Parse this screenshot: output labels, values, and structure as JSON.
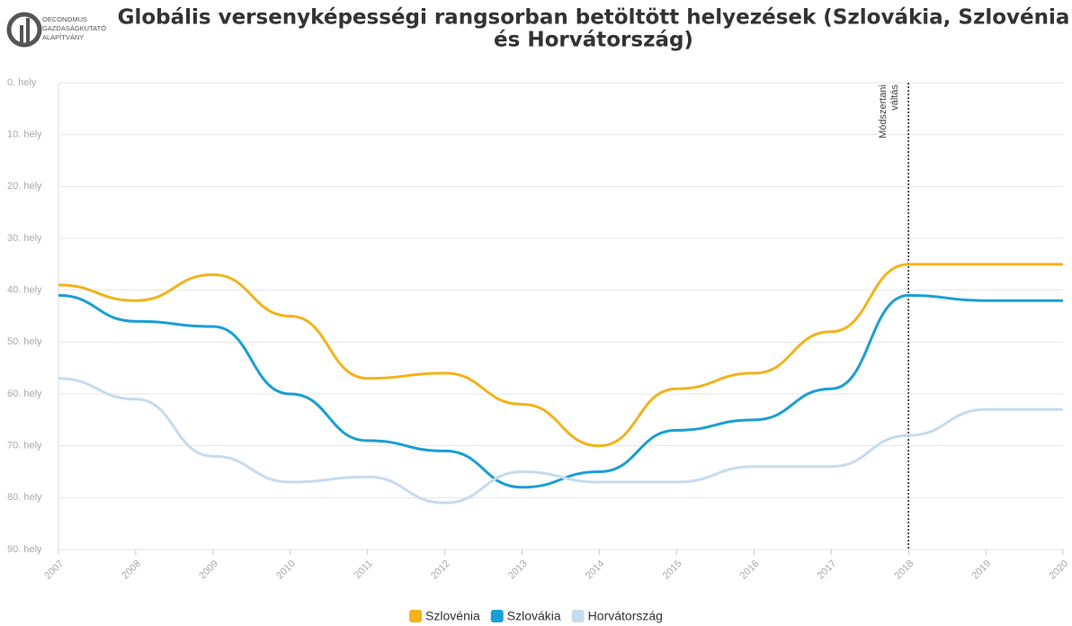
{
  "logo": {
    "lines": [
      "OECONOMUS",
      "GAZDASÁGKUTATÓ",
      "ALAPÍTVÁNY"
    ]
  },
  "chart_data": {
    "type": "line",
    "title": [
      "Globális versenyképességi rangsorban betöltött helyezések (Szlovákia, Szlovénia",
      "és Horvátország)"
    ],
    "categories": [
      "2007",
      "2008",
      "2009",
      "2010",
      "2011",
      "2012",
      "2013",
      "2014",
      "2015",
      "2016",
      "2017",
      "2018",
      "2019",
      "2020"
    ],
    "series": [
      {
        "name": "Szlovénia",
        "color": "#f2b31b",
        "values": [
          39,
          42,
          37,
          45,
          57,
          56,
          62,
          70,
          59,
          56,
          48,
          35,
          35,
          35
        ]
      },
      {
        "name": "Szlovákia",
        "color": "#1a9fd4",
        "values": [
          41,
          46,
          47,
          60,
          69,
          71,
          78,
          75,
          67,
          65,
          59,
          41,
          42,
          42
        ]
      },
      {
        "name": "Horvátország",
        "color": "#c5dbf0",
        "values": [
          57,
          61,
          72,
          77,
          76,
          81,
          75,
          77,
          77,
          74,
          74,
          68,
          63,
          63
        ]
      }
    ],
    "ylim": [
      0,
      90
    ],
    "y_inverted": true,
    "yticks": [
      {
        "value": 0,
        "label": "0. hely"
      },
      {
        "value": 10,
        "label": "10. hely"
      },
      {
        "value": 20,
        "label": "20. hely"
      },
      {
        "value": 30,
        "label": "30. hely"
      },
      {
        "value": 40,
        "label": "40. hely"
      },
      {
        "value": 50,
        "label": "50. hely"
      },
      {
        "value": 60,
        "label": "60. hely"
      },
      {
        "value": 70,
        "label": "70. hely"
      },
      {
        "value": 80,
        "label": "80. hely"
      },
      {
        "value": 90,
        "label": "90. hely"
      }
    ],
    "grid": true,
    "legend": "bottom",
    "annotation": {
      "category": "2018",
      "lines": [
        "Módszertani",
        "váltás"
      ]
    }
  }
}
